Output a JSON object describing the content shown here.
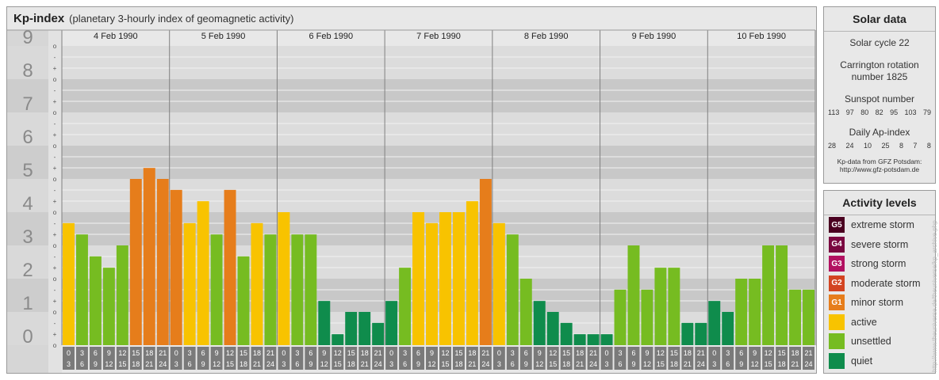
{
  "header": {
    "title": "Kp-index",
    "subtitle": "(planetary 3-hourly index of geomagnetic activity)"
  },
  "chart_data": {
    "type": "bar",
    "y_axis_labels": [
      "0",
      "1",
      "2",
      "3",
      "4",
      "5",
      "6",
      "7",
      "8",
      "9"
    ],
    "y_sublabels": [
      "o",
      "+",
      "-"
    ],
    "ylim": [
      0,
      9
    ],
    "days": [
      {
        "label": "4 Feb 1990",
        "values": [
          3.67,
          3.33,
          2.67,
          2.33,
          3.0,
          5.0,
          5.33,
          5.0
        ]
      },
      {
        "label": "5 Feb 1990",
        "values": [
          4.67,
          3.67,
          4.33,
          3.33,
          4.67,
          2.67,
          3.67,
          3.33
        ]
      },
      {
        "label": "6 Feb 1990",
        "values": [
          4.0,
          3.33,
          3.33,
          1.33,
          0.33,
          1.0,
          1.0,
          0.67
        ]
      },
      {
        "label": "7 Feb 1990",
        "values": [
          1.33,
          2.33,
          4.0,
          3.67,
          4.0,
          4.0,
          4.33,
          5.0
        ]
      },
      {
        "label": "8 Feb 1990",
        "values": [
          3.67,
          3.33,
          2.0,
          1.33,
          1.0,
          0.67,
          0.33,
          0.33
        ]
      },
      {
        "label": "9 Feb 1990",
        "values": [
          0.33,
          1.67,
          3.0,
          1.67,
          2.33,
          2.33,
          0.67,
          0.67
        ]
      },
      {
        "label": "10 Feb 1990",
        "values": [
          1.33,
          1.0,
          2.0,
          2.0,
          3.0,
          3.0,
          1.67,
          1.67
        ]
      }
    ],
    "hour_ranges": [
      [
        "0",
        "3"
      ],
      [
        "3",
        "6"
      ],
      [
        "6",
        "9"
      ],
      [
        "9",
        "12"
      ],
      [
        "12",
        "15"
      ],
      [
        "15",
        "18"
      ],
      [
        "18",
        "21"
      ],
      [
        "21",
        "24"
      ]
    ],
    "colors": {
      "quiet": "#0f8c4c",
      "unsettled": "#76bc21",
      "active": "#f8c300",
      "G1": "#e67d1b",
      "G2": "#d34421",
      "G3": "#b21161",
      "G4": "#7a0840",
      "G5": "#4a0020"
    }
  },
  "solar": {
    "heading": "Solar data",
    "cycle": "Solar cycle 22",
    "carrington": "Carrington rotation number 1825",
    "sunspot_heading": "Sunspot number",
    "sunspots": [
      "113",
      "97",
      "80",
      "82",
      "95",
      "103",
      "79"
    ],
    "ap_heading": "Daily Ap-index",
    "ap_values": [
      "28",
      "24",
      "10",
      "25",
      "8",
      "7",
      "8"
    ],
    "credit_1": "Kp-data from GFZ Potsdam:",
    "credit_2": "http://www.gfz-potsdam.de"
  },
  "levels": {
    "heading": "Activity levels",
    "items": [
      {
        "code": "G5",
        "label": "extreme storm",
        "color": "#4a0020"
      },
      {
        "code": "G4",
        "label": "severe storm",
        "color": "#7a0840"
      },
      {
        "code": "G3",
        "label": "strong storm",
        "color": "#b21161"
      },
      {
        "code": "G2",
        "label": "moderate storm",
        "color": "#d34421"
      },
      {
        "code": "G1",
        "label": "minor storm",
        "color": "#e67d1b"
      },
      {
        "code": "",
        "label": "active",
        "color": "#f8c300"
      },
      {
        "code": "",
        "label": "unsettled",
        "color": "#76bc21"
      },
      {
        "code": "",
        "label": "quiet",
        "color": "#0f8c4c"
      }
    ]
  },
  "watermark": "http://www.theuniverse.de/theuniverse/kp_archive.php"
}
